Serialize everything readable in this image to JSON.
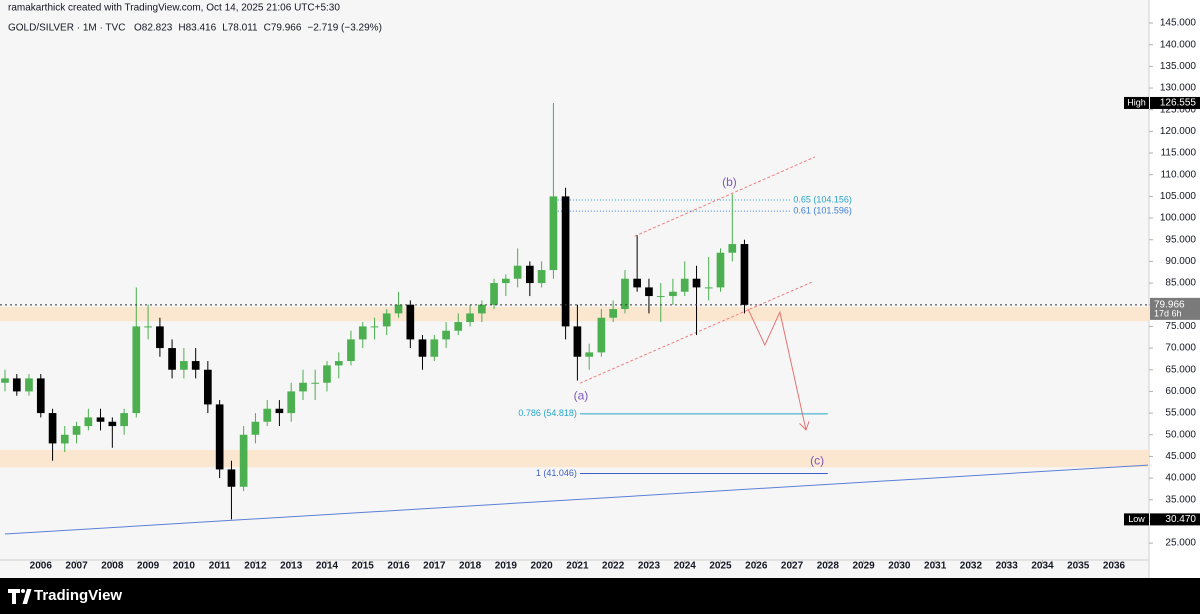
{
  "header": {
    "attribution": "ramakarthick created with TradingView.com, Oct 14, 2025 21:06 UTC+5:30"
  },
  "footer": {
    "brand": "TradingView"
  },
  "chart_data": {
    "type": "candlestick",
    "symbol": "GOLD/SILVER · 1M · TVC",
    "ohlc_legend": [
      "O82.823",
      "H83.416",
      "L78.011",
      "C79.966",
      "−2.719 (−3.29%)"
    ],
    "up_color": "#4caf50",
    "down_color": "#000000",
    "x": [
      2005.0,
      2005.33,
      2005.67,
      2006.0,
      2006.33,
      2006.67,
      2007.0,
      2007.33,
      2007.67,
      2008.0,
      2008.33,
      2008.67,
      2009.0,
      2009.33,
      2009.67,
      2010.0,
      2010.33,
      2010.67,
      2011.0,
      2011.33,
      2011.67,
      2012.0,
      2012.33,
      2012.67,
      2013.0,
      2013.33,
      2013.67,
      2014.0,
      2014.33,
      2014.67,
      2015.0,
      2015.33,
      2015.67,
      2016.0,
      2016.33,
      2016.67,
      2017.0,
      2017.33,
      2017.67,
      2018.0,
      2018.33,
      2018.67,
      2019.0,
      2019.33,
      2019.67,
      2020.0,
      2020.33,
      2020.67,
      2021.0,
      2021.33,
      2021.67,
      2022.0,
      2022.33,
      2022.67,
      2023.0,
      2023.33,
      2023.67,
      2024.0,
      2024.33,
      2024.67,
      2025.0,
      2025.33,
      2025.67
    ],
    "ohlc": [
      [
        62,
        65,
        60,
        63
      ],
      [
        63,
        64,
        59,
        60
      ],
      [
        60,
        64,
        59,
        63
      ],
      [
        63,
        64,
        54,
        55
      ],
      [
        55,
        56,
        44,
        48
      ],
      [
        48,
        52,
        46,
        50
      ],
      [
        50,
        53,
        48,
        52
      ],
      [
        52,
        56,
        51,
        54
      ],
      [
        54,
        56,
        51,
        53
      ],
      [
        53,
        54,
        47,
        52
      ],
      [
        52,
        56,
        50,
        55
      ],
      [
        55,
        84,
        54,
        75
      ],
      [
        75,
        80,
        72,
        75
      ],
      [
        75,
        77,
        68,
        70
      ],
      [
        70,
        72,
        63,
        65
      ],
      [
        65,
        70,
        63,
        67
      ],
      [
        67,
        70,
        63,
        65
      ],
      [
        65,
        67,
        55,
        57
      ],
      [
        57,
        58,
        40,
        42
      ],
      [
        42,
        44,
        30.47,
        38
      ],
      [
        38,
        52,
        37,
        50
      ],
      [
        50,
        55,
        48,
        53
      ],
      [
        53,
        58,
        52,
        56
      ],
      [
        56,
        58,
        52,
        55
      ],
      [
        55,
        62,
        53,
        60
      ],
      [
        60,
        65,
        58,
        62
      ],
      [
        62,
        65,
        58,
        62
      ],
      [
        62,
        67,
        60,
        66
      ],
      [
        66,
        69,
        63,
        67
      ],
      [
        67,
        74,
        66,
        72
      ],
      [
        72,
        76,
        70,
        75
      ],
      [
        75,
        77,
        72,
        75
      ],
      [
        75,
        79,
        73,
        78
      ],
      [
        78,
        83,
        77,
        80
      ],
      [
        80,
        81,
        70,
        72
      ],
      [
        72,
        73,
        65,
        68
      ],
      [
        68,
        73,
        67,
        72
      ],
      [
        72,
        76,
        70,
        74
      ],
      [
        74,
        78,
        73,
        76
      ],
      [
        76,
        80,
        75,
        78
      ],
      [
        78,
        81,
        76,
        80
      ],
      [
        80,
        86,
        79,
        85
      ],
      [
        85,
        87,
        82,
        86
      ],
      [
        86,
        93,
        84,
        89
      ],
      [
        89,
        90,
        82,
        85
      ],
      [
        85,
        90,
        84,
        88
      ],
      [
        88,
        126.555,
        86,
        105
      ],
      [
        105,
        107,
        72,
        75
      ],
      [
        75,
        80,
        62.5,
        68
      ],
      [
        68,
        71,
        65,
        69
      ],
      [
        69,
        79,
        68,
        77
      ],
      [
        77,
        81,
        76,
        79
      ],
      [
        79,
        88,
        78,
        86
      ],
      [
        86,
        96,
        83,
        84
      ],
      [
        84,
        86,
        78,
        82
      ],
      [
        82,
        85,
        76,
        82
      ],
      [
        82,
        86,
        80,
        83
      ],
      [
        83,
        90,
        82,
        86
      ],
      [
        86,
        89,
        73,
        84
      ],
      [
        84,
        91,
        81,
        84
      ],
      [
        84,
        93,
        83,
        92
      ],
      [
        92,
        105.5,
        90,
        94
      ],
      [
        94,
        95,
        78,
        79.966
      ]
    ],
    "xlim": [
      2005.0,
      2036.95
    ],
    "ylim": [
      21.1,
      146.85
    ],
    "xticks": [
      2006,
      2007,
      2008,
      2009,
      2010,
      2011,
      2012,
      2013,
      2014,
      2015,
      2016,
      2017,
      2018,
      2019,
      2020,
      2021,
      2022,
      2023,
      2024,
      2025,
      2026,
      2027,
      2028,
      2029,
      2030,
      2031,
      2032,
      2033,
      2034,
      2035,
      2036
    ],
    "yticks": [
      {
        "value": 25,
        "label": "25.000"
      },
      {
        "value": 30,
        "label": "30.000"
      },
      {
        "value": 35,
        "label": "35.000"
      },
      {
        "value": 40,
        "label": "40.000"
      },
      {
        "value": 45,
        "label": "45.000"
      },
      {
        "value": 50,
        "label": "50.000"
      },
      {
        "value": 55,
        "label": "55.000"
      },
      {
        "value": 60,
        "label": "60.000"
      },
      {
        "value": 65,
        "label": "65.000"
      },
      {
        "value": 70,
        "label": "70.000"
      },
      {
        "value": 75,
        "label": "75.000"
      },
      {
        "value": 80,
        "label": "80.000"
      },
      {
        "value": 85,
        "label": "85.000"
      },
      {
        "value": 90,
        "label": "90.000"
      },
      {
        "value": 95,
        "label": "95.000"
      },
      {
        "value": 100,
        "label": "100.000"
      },
      {
        "value": 105,
        "label": "105.000"
      },
      {
        "value": 110,
        "label": "110.000"
      },
      {
        "value": 115,
        "label": "115.000"
      },
      {
        "value": 120,
        "label": "120.000"
      },
      {
        "value": 125,
        "label": "125.000"
      },
      {
        "value": 130,
        "label": "130.000"
      },
      {
        "value": 135,
        "label": "135.000"
      },
      {
        "value": 140,
        "label": "140.000"
      },
      {
        "value": 145,
        "label": "145.000"
      }
    ],
    "high": {
      "tag": "High",
      "value": 126.555,
      "label": "126.555"
    },
    "low": {
      "tag": "Low",
      "value": 30.47,
      "label": "30.470"
    },
    "last_price": {
      "value": 79.966,
      "label": "79.966",
      "countdown": "17d 6h"
    },
    "zones": [
      {
        "from": 76.2,
        "to": 79.5,
        "color": "#fce3c9"
      },
      {
        "from": 42.5,
        "to": 46.5,
        "color": "#fce3c9"
      }
    ],
    "fib_levels": [
      {
        "label": "0.65 (104.156)",
        "value": 104.156,
        "start": 2020.37,
        "end": 2026.94,
        "label_side": "right",
        "color": "#26a6c9",
        "dashed": true
      },
      {
        "label": "0.61 (101.596)",
        "value": 101.596,
        "start": 2020.37,
        "end": 2026.94,
        "label_side": "right",
        "color": "#3f7fd6",
        "dashed": true
      },
      {
        "label": "0.786 (54.818)",
        "value": 54.818,
        "start": 2021.07,
        "end": 2028.0,
        "label_side": "left",
        "color": "#26a6c9",
        "dashed": false
      },
      {
        "label": "1 (41.046)",
        "value": 41.046,
        "start": 2021.07,
        "end": 2028.0,
        "label_side": "left",
        "color": "#3f5fc7",
        "dashed": false
      }
    ],
    "trendlines": [
      {
        "color": "#f08080",
        "dashed": true,
        "arrow": false,
        "points": [
          [
            2022.6,
            95.8
          ],
          [
            2027.64,
            114.1
          ]
        ]
      },
      {
        "color": "#f08080",
        "dashed": true,
        "arrow": false,
        "points": [
          [
            2021.07,
            61.9
          ],
          [
            2027.55,
            85.2
          ]
        ]
      },
      {
        "color": "#5b7fd6",
        "dashed": false,
        "arrow": false,
        "points": [
          [
            2005.0,
            27.1
          ],
          [
            2036.95,
            43.0
          ]
        ]
      },
      {
        "color": "#e57373",
        "dashed": false,
        "arrow": true,
        "points": [
          [
            2025.77,
            79.0
          ],
          [
            2026.24,
            70.7
          ],
          [
            2026.66,
            78.3
          ],
          [
            2027.39,
            51.1
          ]
        ]
      }
    ],
    "wave_labels": [
      {
        "text": "(a)",
        "x": 2021.1,
        "y": 58.9
      },
      {
        "text": "(b)",
        "x": 2025.25,
        "y": 108.1
      },
      {
        "text": "(c)",
        "x": 2027.7,
        "y": 43.9
      }
    ],
    "wave_color": "#7e57c2"
  }
}
